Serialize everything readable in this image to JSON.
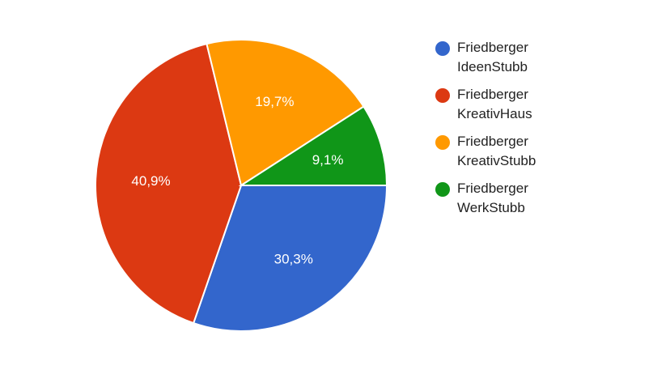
{
  "chart_data": {
    "type": "pie",
    "title": "",
    "series": [
      {
        "name_lines": [
          "Friedberger",
          "IdeenStubb"
        ],
        "value": 30.3,
        "label": "30,3%",
        "color": "#3366cc"
      },
      {
        "name_lines": [
          "Friedberger",
          "KreativHaus"
        ],
        "value": 40.9,
        "label": "40,9%",
        "color": "#dc3912"
      },
      {
        "name_lines": [
          "Friedberger",
          "KreativStubb"
        ],
        "value": 19.7,
        "label": "19,7%",
        "color": "#ff9900"
      },
      {
        "name_lines": [
          "Friedberger",
          "WerkStubb"
        ],
        "value": 9.1,
        "label": "9,1%",
        "color": "#109618"
      }
    ],
    "start_angle": "3 o'clock",
    "direction": "clockwise",
    "legend_position": "right"
  }
}
